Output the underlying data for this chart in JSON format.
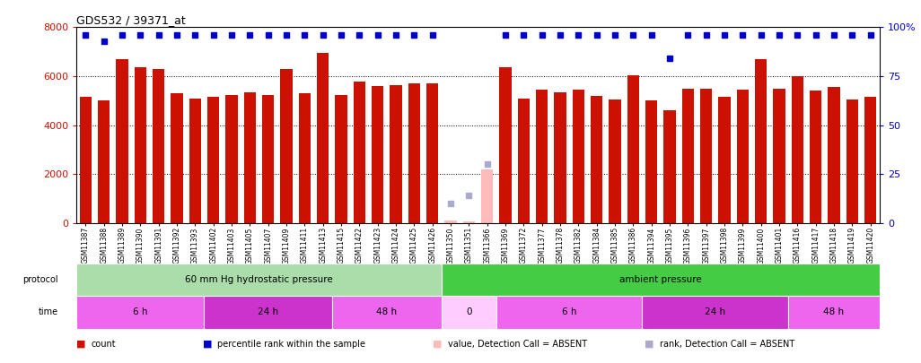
{
  "title": "GDS532 / 39371_at",
  "samples": [
    "GSM11387",
    "GSM11388",
    "GSM11389",
    "GSM11390",
    "GSM11391",
    "GSM11392",
    "GSM11393",
    "GSM11402",
    "GSM11403",
    "GSM11405",
    "GSM11407",
    "GSM11409",
    "GSM11411",
    "GSM11413",
    "GSM11415",
    "GSM11422",
    "GSM11423",
    "GSM11424",
    "GSM11425",
    "GSM11426",
    "GSM11350",
    "GSM11351",
    "GSM11366",
    "GSM11369",
    "GSM11372",
    "GSM11377",
    "GSM11378",
    "GSM11382",
    "GSM11384",
    "GSM11385",
    "GSM11386",
    "GSM11394",
    "GSM11395",
    "GSM11396",
    "GSM11397",
    "GSM11398",
    "GSM11399",
    "GSM11400",
    "GSM11401",
    "GSM11416",
    "GSM11417",
    "GSM11418",
    "GSM11419",
    "GSM11420"
  ],
  "count_values": [
    5150,
    5000,
    6700,
    6350,
    6300,
    5300,
    5080,
    5150,
    5250,
    5350,
    5250,
    6300,
    5300,
    6950,
    5250,
    5800,
    5600,
    5650,
    5700,
    5700,
    120,
    60,
    2200,
    6350,
    5100,
    5450,
    5350,
    5450,
    5200,
    5050,
    6050,
    5000,
    4600,
    5500,
    5500,
    5150,
    5450,
    6700,
    5500,
    6000,
    5400,
    5550,
    5050,
    5150
  ],
  "percentile_values": [
    96,
    93,
    96,
    96,
    96,
    96,
    96,
    96,
    96,
    96,
    96,
    96,
    96,
    96,
    96,
    96,
    96,
    96,
    96,
    96,
    10,
    14,
    30,
    96,
    96,
    96,
    96,
    96,
    96,
    96,
    96,
    96,
    84,
    96,
    96,
    96,
    96,
    96,
    96,
    96,
    96,
    96,
    96,
    96
  ],
  "absent_mask": [
    false,
    false,
    false,
    false,
    false,
    false,
    false,
    false,
    false,
    false,
    false,
    false,
    false,
    false,
    false,
    false,
    false,
    false,
    false,
    false,
    true,
    true,
    true,
    false,
    false,
    false,
    false,
    false,
    false,
    false,
    false,
    false,
    false,
    false,
    false,
    false,
    false,
    false,
    false,
    false,
    false,
    false,
    false,
    false
  ],
  "bar_color": "#cc1100",
  "bar_color_absent": "#ffbbbb",
  "dot_color": "#0000cc",
  "dot_color_absent": "#aaaacc",
  "ylim_left": [
    0,
    8000
  ],
  "ylim_right": [
    0,
    100
  ],
  "yticks_left": [
    0,
    2000,
    4000,
    6000,
    8000
  ],
  "yticks_right": [
    0,
    25,
    50,
    75,
    100
  ],
  "protocol_groups": [
    {
      "label": "60 mm Hg hydrostatic pressure",
      "start": 0,
      "end": 20,
      "color": "#aaddaa"
    },
    {
      "label": "ambient pressure",
      "start": 20,
      "end": 44,
      "color": "#44cc44"
    }
  ],
  "time_groups": [
    {
      "label": "6 h",
      "start": 0,
      "end": 7,
      "color": "#ee66ee"
    },
    {
      "label": "24 h",
      "start": 7,
      "end": 14,
      "color": "#cc33cc"
    },
    {
      "label": "48 h",
      "start": 14,
      "end": 20,
      "color": "#ee66ee"
    },
    {
      "label": "0",
      "start": 20,
      "end": 23,
      "color": "#ffccff"
    },
    {
      "label": "6 h",
      "start": 23,
      "end": 31,
      "color": "#ee66ee"
    },
    {
      "label": "24 h",
      "start": 31,
      "end": 39,
      "color": "#cc33cc"
    },
    {
      "label": "48 h",
      "start": 39,
      "end": 44,
      "color": "#ee66ee"
    }
  ],
  "bg_color": "#ffffff",
  "legend_items": [
    {
      "label": "count",
      "color": "#cc1100"
    },
    {
      "label": "percentile rank within the sample",
      "color": "#0000cc"
    },
    {
      "label": "value, Detection Call = ABSENT",
      "color": "#ffbbbb"
    },
    {
      "label": "rank, Detection Call = ABSENT",
      "color": "#aaaacc"
    }
  ]
}
